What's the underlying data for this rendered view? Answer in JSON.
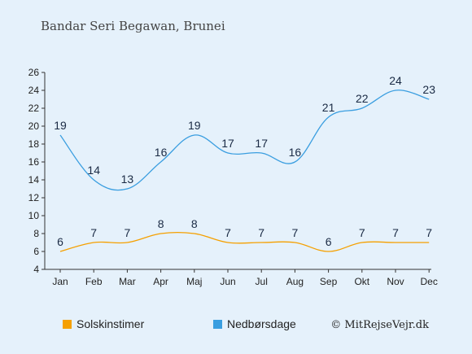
{
  "chart_data": {
    "type": "line",
    "title": "Bandar Seri Begawan, Brunei",
    "categories": [
      "Jan",
      "Feb",
      "Mar",
      "Apr",
      "Maj",
      "Jun",
      "Jul",
      "Aug",
      "Sep",
      "Okt",
      "Nov",
      "Dec"
    ],
    "ylim": [
      4,
      26
    ],
    "yticks": [
      4,
      6,
      8,
      10,
      12,
      14,
      16,
      18,
      20,
      22,
      24,
      26
    ],
    "grid": false,
    "legend_position": "bottom",
    "series": [
      {
        "name": "Solskinstimer",
        "color": "#f5a000",
        "values": [
          6,
          7,
          7,
          8,
          8,
          7,
          7,
          7,
          6,
          7,
          7,
          7
        ]
      },
      {
        "name": "Nedbørsdage",
        "color": "#3a9ee0",
        "values": [
          19,
          14,
          13,
          16,
          19,
          17,
          17,
          16,
          21,
          22,
          24,
          23
        ]
      }
    ],
    "copyright": "© MitRejseVejr.dk"
  }
}
